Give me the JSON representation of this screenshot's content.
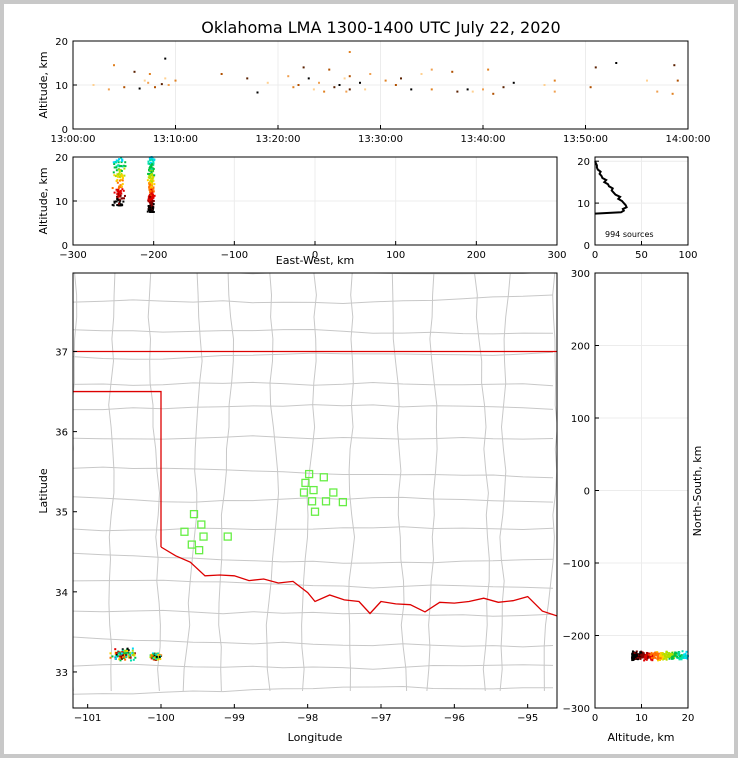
{
  "title": "Oklahoma LMA 1300-1400 UTC July 22, 2020",
  "colors": {
    "state_border": "#dd0000",
    "county_lines": "#c8c8c8",
    "station_marker": "#66ee44",
    "profile_line": "#000000"
  },
  "chart_data": [
    {
      "panel": "time-height",
      "type": "scatter",
      "xlabel": "",
      "ylabel": "Altitude, km",
      "x_ticks": [
        "13:00:00",
        "13:10:00",
        "13:20:00",
        "13:30:00",
        "13:40:00",
        "13:50:00",
        "14:00:00"
      ],
      "y_ticks": [
        0,
        10,
        20
      ],
      "xlim": [
        "13:00:00",
        "14:00:00"
      ],
      "ylim": [
        0,
        20
      ],
      "grid": true,
      "color_by": "time",
      "points": [
        {
          "t": "13:02:00",
          "alt": 10.0
        },
        {
          "t": "13:03:30",
          "alt": 9.0
        },
        {
          "t": "13:04:00",
          "alt": 14.5
        },
        {
          "t": "13:05:00",
          "alt": 9.5
        },
        {
          "t": "13:06:00",
          "alt": 13.0
        },
        {
          "t": "13:06:30",
          "alt": 9.2
        },
        {
          "t": "13:07:00",
          "alt": 11.0
        },
        {
          "t": "13:07:20",
          "alt": 10.5
        },
        {
          "t": "13:07:30",
          "alt": 12.5
        },
        {
          "t": "13:08:00",
          "alt": 9.5
        },
        {
          "t": "13:08:40",
          "alt": 10.2
        },
        {
          "t": "13:09:00",
          "alt": 16.0
        },
        {
          "t": "13:09:00",
          "alt": 11.5
        },
        {
          "t": "13:09:20",
          "alt": 10.0
        },
        {
          "t": "13:10:00",
          "alt": 11.0
        },
        {
          "t": "13:14:30",
          "alt": 12.5
        },
        {
          "t": "13:17:00",
          "alt": 11.5
        },
        {
          "t": "13:18:00",
          "alt": 8.3
        },
        {
          "t": "13:19:00",
          "alt": 10.5
        },
        {
          "t": "13:21:00",
          "alt": 12.0
        },
        {
          "t": "13:21:30",
          "alt": 9.5
        },
        {
          "t": "13:22:00",
          "alt": 10.0
        },
        {
          "t": "13:22:30",
          "alt": 14.0
        },
        {
          "t": "13:23:00",
          "alt": 11.5
        },
        {
          "t": "13:23:30",
          "alt": 9.0
        },
        {
          "t": "13:24:00",
          "alt": 10.5
        },
        {
          "t": "13:24:30",
          "alt": 8.5
        },
        {
          "t": "13:25:00",
          "alt": 13.5
        },
        {
          "t": "13:25:30",
          "alt": 9.5
        },
        {
          "t": "13:26:00",
          "alt": 10.0
        },
        {
          "t": "13:26:30",
          "alt": 11.5
        },
        {
          "t": "13:26:40",
          "alt": 8.5
        },
        {
          "t": "13:27:00",
          "alt": 17.5
        },
        {
          "t": "13:27:00",
          "alt": 12.0
        },
        {
          "t": "13:27:00",
          "alt": 9.0
        },
        {
          "t": "13:28:00",
          "alt": 10.5
        },
        {
          "t": "13:28:30",
          "alt": 9.0
        },
        {
          "t": "13:29:00",
          "alt": 12.5
        },
        {
          "t": "13:30:30",
          "alt": 11.0
        },
        {
          "t": "13:31:30",
          "alt": 10.0
        },
        {
          "t": "13:32:00",
          "alt": 11.5
        },
        {
          "t": "13:33:00",
          "alt": 9.0
        },
        {
          "t": "13:34:00",
          "alt": 12.5
        },
        {
          "t": "13:35:00",
          "alt": 13.5
        },
        {
          "t": "13:35:00",
          "alt": 9.0
        },
        {
          "t": "13:37:00",
          "alt": 13.0
        },
        {
          "t": "13:37:30",
          "alt": 8.5
        },
        {
          "t": "13:38:30",
          "alt": 9.0
        },
        {
          "t": "13:39:00",
          "alt": 8.5
        },
        {
          "t": "13:40:00",
          "alt": 9.0
        },
        {
          "t": "13:40:30",
          "alt": 13.5
        },
        {
          "t": "13:41:00",
          "alt": 8.0
        },
        {
          "t": "13:42:00",
          "alt": 9.5
        },
        {
          "t": "13:43:00",
          "alt": 10.5
        },
        {
          "t": "13:46:00",
          "alt": 10.0
        },
        {
          "t": "13:47:00",
          "alt": 8.5
        },
        {
          "t": "13:47:00",
          "alt": 11.0
        },
        {
          "t": "13:50:30",
          "alt": 9.5
        },
        {
          "t": "13:51:00",
          "alt": 14.0
        },
        {
          "t": "13:53:00",
          "alt": 15.0
        },
        {
          "t": "13:56:00",
          "alt": 11.0
        },
        {
          "t": "13:57:00",
          "alt": 8.5
        },
        {
          "t": "13:58:30",
          "alt": 8.0
        },
        {
          "t": "13:59:00",
          "alt": 11.0
        },
        {
          "t": "13:58:40",
          "alt": 14.5
        }
      ]
    },
    {
      "panel": "east-west-altitude",
      "type": "scatter",
      "xlabel": "East-West, km",
      "ylabel": "Altitude, km",
      "x_ticks": [
        -300,
        -200,
        -100,
        0,
        100,
        200,
        300
      ],
      "y_ticks": [
        0,
        10,
        20
      ],
      "xlim": [
        -300,
        300
      ],
      "ylim": [
        0,
        20
      ],
      "grid": true,
      "color_by": "time",
      "clusters": [
        {
          "x_center": -243,
          "x_spread": 10,
          "alt_min": 9.0,
          "alt_max": 20.0,
          "count": 120
        },
        {
          "x_center": -203,
          "x_spread": 5,
          "alt_min": 7.5,
          "alt_max": 20.0,
          "count": 260
        }
      ]
    },
    {
      "panel": "altitude-histogram",
      "type": "line",
      "xlabel": "",
      "ylabel": "",
      "annotation": "994 sources",
      "x_ticks": [
        0,
        50,
        100
      ],
      "y_ticks": [
        0,
        10,
        20
      ],
      "xlim": [
        0,
        100
      ],
      "ylim": [
        0,
        21
      ],
      "grid": true,
      "profile": [
        {
          "alt": 7.5,
          "count": 0
        },
        {
          "alt": 7.8,
          "count": 28
        },
        {
          "alt": 8.2,
          "count": 31
        },
        {
          "alt": 8.6,
          "count": 30
        },
        {
          "alt": 9.0,
          "count": 34
        },
        {
          "alt": 9.5,
          "count": 33
        },
        {
          "alt": 10.0,
          "count": 31
        },
        {
          "alt": 10.5,
          "count": 29
        },
        {
          "alt": 11.0,
          "count": 25
        },
        {
          "alt": 11.5,
          "count": 27
        },
        {
          "alt": 12.0,
          "count": 22
        },
        {
          "alt": 12.5,
          "count": 20
        },
        {
          "alt": 13.0,
          "count": 18
        },
        {
          "alt": 13.5,
          "count": 19
        },
        {
          "alt": 14.0,
          "count": 15
        },
        {
          "alt": 14.5,
          "count": 14
        },
        {
          "alt": 15.0,
          "count": 10
        },
        {
          "alt": 15.5,
          "count": 12
        },
        {
          "alt": 16.0,
          "count": 8
        },
        {
          "alt": 16.5,
          "count": 7
        },
        {
          "alt": 17.0,
          "count": 5
        },
        {
          "alt": 17.5,
          "count": 6
        },
        {
          "alt": 18.0,
          "count": 3
        },
        {
          "alt": 18.5,
          "count": 2
        },
        {
          "alt": 19.0,
          "count": 2
        },
        {
          "alt": 19.5,
          "count": 1
        },
        {
          "alt": 20.0,
          "count": 0
        }
      ]
    },
    {
      "panel": "plan-view-map",
      "type": "scatter",
      "xlabel": "Longitude",
      "ylabel": "Latitude",
      "x_ticks": [
        -101,
        -100,
        -99,
        -98,
        -97,
        -96,
        -95
      ],
      "y_ticks": [
        33,
        34,
        35,
        36,
        37
      ],
      "xlim": [
        -101.2,
        -94.6
      ],
      "ylim": [
        32.55,
        37.98
      ],
      "stations": [
        [
          -99.55,
          34.97
        ],
        [
          -99.45,
          34.84
        ],
        [
          -99.68,
          34.75
        ],
        [
          -99.42,
          34.69
        ],
        [
          -99.58,
          34.59
        ],
        [
          -99.48,
          34.52
        ],
        [
          -99.09,
          34.69
        ],
        [
          -97.98,
          35.47
        ],
        [
          -98.03,
          35.36
        ],
        [
          -97.78,
          35.43
        ],
        [
          -97.92,
          35.27
        ],
        [
          -98.05,
          35.24
        ],
        [
          -97.65,
          35.24
        ],
        [
          -97.94,
          35.13
        ],
        [
          -97.75,
          35.13
        ],
        [
          -97.52,
          35.12
        ],
        [
          -97.9,
          35.0
        ]
      ],
      "source_clusters": [
        {
          "lon": -100.5,
          "lat": 33.22,
          "spread_lon": 0.22,
          "spread_lat": 0.09,
          "count": 120
        },
        {
          "lon": -100.07,
          "lat": 33.19,
          "spread_lon": 0.08,
          "spread_lat": 0.05,
          "count": 260
        }
      ]
    },
    {
      "panel": "altitude-north-south",
      "type": "scatter",
      "xlabel": "Altitude, km",
      "ylabel": "North-South, km",
      "x_ticks": [
        0,
        10,
        20
      ],
      "y_ticks": [
        -300,
        -200,
        -100,
        0,
        100,
        200,
        300
      ],
      "xlim": [
        0,
        20
      ],
      "ylim": [
        -300,
        300
      ],
      "grid": true,
      "color_by": "time",
      "clusters": [
        {
          "alt_min": 8.0,
          "alt_max": 20.0,
          "ns_center": -228,
          "ns_spread": 8,
          "count": 380
        }
      ]
    }
  ]
}
